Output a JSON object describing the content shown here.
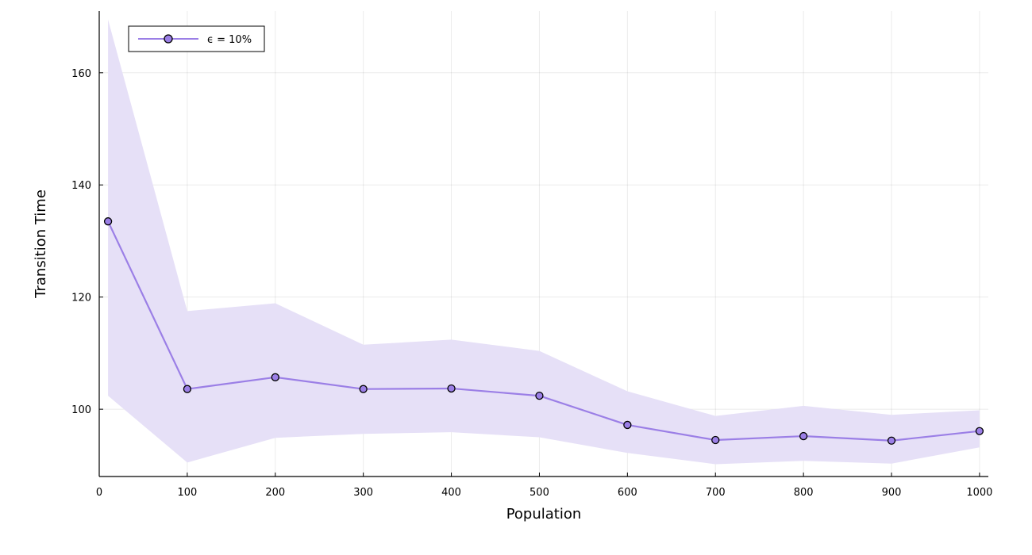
{
  "chart_data": {
    "type": "line",
    "title": "",
    "xlabel": "Population",
    "ylabel": "Transition Time",
    "xlim": [
      0,
      1010
    ],
    "ylim": [
      88,
      171
    ],
    "xticks": [
      0,
      100,
      200,
      300,
      400,
      500,
      600,
      700,
      800,
      900,
      1000
    ],
    "yticks": [
      100,
      120,
      140,
      160
    ],
    "grid": true,
    "legend_position": "top-left",
    "series": [
      {
        "name": "ϵ = 10%",
        "color": "#9b7fe6",
        "band_color": "#e6e0f7",
        "x": [
          10,
          100,
          200,
          300,
          400,
          500,
          600,
          700,
          800,
          900,
          1000
        ],
        "y": [
          133.5,
          103.6,
          105.7,
          103.6,
          103.7,
          102.4,
          97.2,
          94.5,
          95.2,
          94.4,
          96.1
        ],
        "upper": [
          169.5,
          117.5,
          118.9,
          111.5,
          112.4,
          110.4,
          103.2,
          98.8,
          100.6,
          99.0,
          99.8
        ],
        "lower": [
          102.4,
          90.5,
          94.9,
          95.6,
          95.9,
          95.0,
          92.2,
          90.2,
          90.8,
          90.3,
          93.2
        ]
      }
    ]
  }
}
